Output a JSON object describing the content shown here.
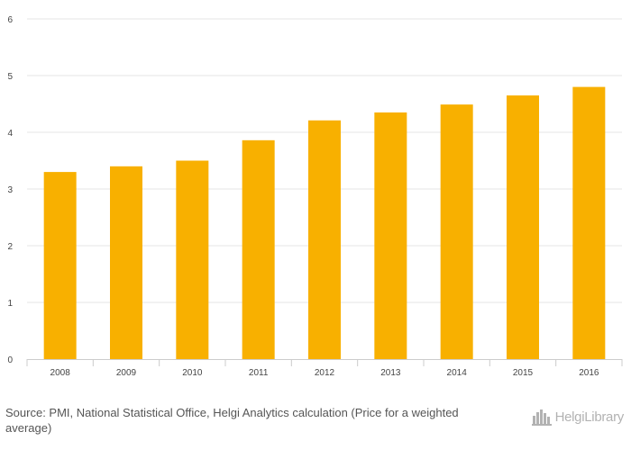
{
  "chart_data": {
    "type": "bar",
    "categories": [
      "2008",
      "2009",
      "2010",
      "2011",
      "2012",
      "2013",
      "2014",
      "2015",
      "2016"
    ],
    "values": [
      3.3,
      3.4,
      3.5,
      3.86,
      4.21,
      4.35,
      4.49,
      4.65,
      4.8
    ],
    "title": "",
    "xlabel": "",
    "ylabel": "",
    "ylim": [
      0,
      6
    ],
    "yticks": [
      "0",
      "1",
      "2",
      "3",
      "4",
      "5",
      "6"
    ],
    "grid": true,
    "bar_color": "#F8B000",
    "grid_color": "#E6E6E6"
  },
  "footer": {
    "source": "Source: PMI, National Statistical Office, Helgi Analytics calculation (Price for a weighted average)",
    "logo_text": "HelgiLibrary",
    "logo_icon": "city-skyline-icon"
  }
}
